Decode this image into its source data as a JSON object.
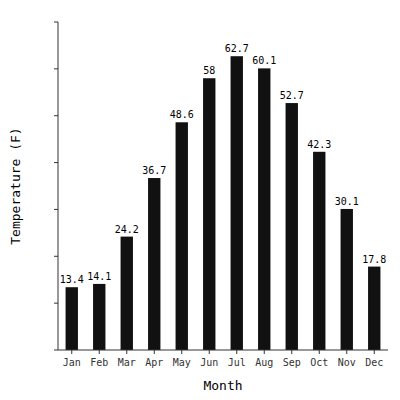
{
  "chart_data": {
    "type": "bar",
    "categories": [
      "Jan",
      "Feb",
      "Mar",
      "Apr",
      "May",
      "Jun",
      "Jul",
      "Aug",
      "Sep",
      "Oct",
      "Nov",
      "Dec"
    ],
    "values": [
      13.4,
      14.1,
      24.2,
      36.7,
      48.6,
      58.0,
      62.7,
      60.1,
      52.7,
      42.3,
      30.1,
      17.8
    ],
    "color": "#111111",
    "xlabel": "Month",
    "ylabel": "Temperature (F)",
    "ylim": [
      0,
      70
    ],
    "yticks": [
      0,
      10,
      20,
      30,
      40,
      50,
      60,
      70
    ],
    "grid": false,
    "data_labels": true,
    "tick_labels": "x"
  }
}
